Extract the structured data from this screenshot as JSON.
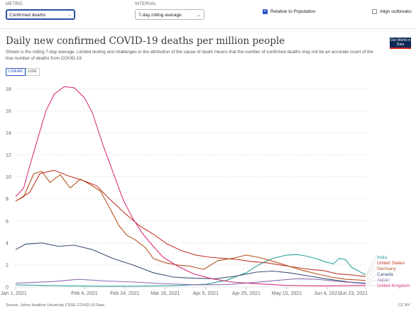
{
  "controls": {
    "metric_label": "METRIC",
    "metric_value": "Confirmed deaths",
    "interval_label": "INTERVAL",
    "interval_value": "7-day rolling average",
    "relative_label": "Relative to Population",
    "relative_checked": true,
    "align_label": "Align outbreaks",
    "align_checked": false
  },
  "header": {
    "title": "Daily new confirmed COVID-19 deaths per million people",
    "subtitle": "Shown is the rolling 7-day average. Limited testing and challenges in the attribution of the cause of death means that the number of confirmed deaths may not be an accurate count of the true number of deaths from COVID-19.",
    "logo": "Our World in Data"
  },
  "scale_toggle": {
    "linear": "LINEAR",
    "log": "LOG",
    "selected": "LINEAR"
  },
  "footer": {
    "source": "Source: Johns Hopkins University CSSE COVID-19 Data",
    "license": "CC BY"
  },
  "chart_data": {
    "type": "line",
    "title": "Daily new confirmed COVID-19 deaths per million people",
    "xlabel": "",
    "ylabel": "",
    "x_ticks": [
      "Jan 1, 2021",
      "Feb 4, 2021",
      "Feb 24, 2021",
      "Mar 16, 2021",
      "Apr 5, 2021",
      "Apr 25, 2021",
      "May 15, 2021",
      "Jun 4, 2021",
      "Jun 23, 2021"
    ],
    "x_range": [
      "2021-01-01",
      "2021-06-23"
    ],
    "ylim": [
      0,
      18.6
    ],
    "y_ticks": [
      0,
      2,
      4,
      6,
      8,
      10,
      12,
      14,
      16,
      18
    ],
    "grid": true,
    "legend": "right",
    "series": [
      {
        "name": "India",
        "color": "#2aa198",
        "points": [
          [
            "2021-01-01",
            0.2
          ],
          [
            "2021-01-20",
            0.12
          ],
          [
            "2021-02-10",
            0.08
          ],
          [
            "2021-03-01",
            0.08
          ],
          [
            "2021-03-20",
            0.12
          ],
          [
            "2021-04-05",
            0.25
          ],
          [
            "2021-04-15",
            0.6
          ],
          [
            "2021-04-25",
            1.3
          ],
          [
            "2021-05-01",
            2.0
          ],
          [
            "2021-05-08",
            2.6
          ],
          [
            "2021-05-15",
            2.9
          ],
          [
            "2021-05-20",
            2.95
          ],
          [
            "2021-05-25",
            2.8
          ],
          [
            "2021-05-30",
            2.55
          ],
          [
            "2021-06-03",
            2.3
          ],
          [
            "2021-06-07",
            2.1
          ],
          [
            "2021-06-10",
            2.6
          ],
          [
            "2021-06-13",
            2.5
          ],
          [
            "2021-06-16",
            1.8
          ],
          [
            "2021-06-20",
            1.4
          ],
          [
            "2021-06-23",
            1.1
          ]
        ]
      },
      {
        "name": "United States",
        "color": "#c0392b",
        "points": [
          [
            "2021-01-01",
            7.8
          ],
          [
            "2021-01-08",
            8.6
          ],
          [
            "2021-01-13",
            10.3
          ],
          [
            "2021-01-20",
            10.6
          ],
          [
            "2021-01-27",
            10.1
          ],
          [
            "2021-02-03",
            9.7
          ],
          [
            "2021-02-10",
            9.2
          ],
          [
            "2021-02-17",
            7.9
          ],
          [
            "2021-02-24",
            6.7
          ],
          [
            "2021-03-03",
            5.6
          ],
          [
            "2021-03-10",
            4.8
          ],
          [
            "2021-03-17",
            3.9
          ],
          [
            "2021-03-24",
            3.3
          ],
          [
            "2021-03-31",
            2.9
          ],
          [
            "2021-04-07",
            2.7
          ],
          [
            "2021-04-14",
            2.6
          ],
          [
            "2021-04-21",
            2.5
          ],
          [
            "2021-04-28",
            2.3
          ],
          [
            "2021-05-05",
            2.2
          ],
          [
            "2021-05-12",
            2.0
          ],
          [
            "2021-05-19",
            1.8
          ],
          [
            "2021-05-26",
            1.6
          ],
          [
            "2021-06-02",
            1.5
          ],
          [
            "2021-06-09",
            1.2
          ],
          [
            "2021-06-16",
            1.1
          ],
          [
            "2021-06-23",
            0.95
          ]
        ]
      },
      {
        "name": "Germany",
        "color": "#b5541c",
        "points": [
          [
            "2021-01-01",
            7.8
          ],
          [
            "2021-01-05",
            8.2
          ],
          [
            "2021-01-10",
            10.3
          ],
          [
            "2021-01-14",
            10.5
          ],
          [
            "2021-01-18",
            9.5
          ],
          [
            "2021-01-23",
            10.2
          ],
          [
            "2021-01-28",
            9.0
          ],
          [
            "2021-02-02",
            9.8
          ],
          [
            "2021-02-07",
            9.3
          ],
          [
            "2021-02-12",
            8.7
          ],
          [
            "2021-02-17",
            7.0
          ],
          [
            "2021-02-21",
            5.6
          ],
          [
            "2021-02-25",
            4.7
          ],
          [
            "2021-03-01",
            4.3
          ],
          [
            "2021-03-06",
            3.6
          ],
          [
            "2021-03-10",
            2.6
          ],
          [
            "2021-03-16",
            2.2
          ],
          [
            "2021-03-22",
            2.0
          ],
          [
            "2021-03-28",
            1.9
          ],
          [
            "2021-04-04",
            1.6
          ],
          [
            "2021-04-11",
            2.4
          ],
          [
            "2021-04-18",
            2.6
          ],
          [
            "2021-04-25",
            2.9
          ],
          [
            "2021-05-01",
            2.7
          ],
          [
            "2021-05-09",
            2.3
          ],
          [
            "2021-05-16",
            1.9
          ],
          [
            "2021-05-23",
            1.5
          ],
          [
            "2021-05-30",
            1.2
          ],
          [
            "2021-06-06",
            0.9
          ],
          [
            "2021-06-13",
            0.7
          ],
          [
            "2021-06-23",
            0.6
          ]
        ]
      },
      {
        "name": "Canada",
        "color": "#3d4f78",
        "points": [
          [
            "2021-01-01",
            3.4
          ],
          [
            "2021-01-06",
            3.9
          ],
          [
            "2021-01-14",
            4.0
          ],
          [
            "2021-01-22",
            3.7
          ],
          [
            "2021-01-30",
            3.8
          ],
          [
            "2021-02-08",
            3.4
          ],
          [
            "2021-02-18",
            2.6
          ],
          [
            "2021-02-28",
            2.0
          ],
          [
            "2021-03-10",
            1.3
          ],
          [
            "2021-03-20",
            0.9
          ],
          [
            "2021-03-30",
            0.8
          ],
          [
            "2021-04-10",
            0.75
          ],
          [
            "2021-04-20",
            1.0
          ],
          [
            "2021-04-30",
            1.35
          ],
          [
            "2021-05-08",
            1.45
          ],
          [
            "2021-05-16",
            1.3
          ],
          [
            "2021-05-26",
            1.0
          ],
          [
            "2021-06-05",
            0.7
          ],
          [
            "2021-06-15",
            0.45
          ],
          [
            "2021-06-23",
            0.35
          ]
        ]
      },
      {
        "name": "Japan",
        "color": "#8e6fb0",
        "points": [
          [
            "2021-01-01",
            0.35
          ],
          [
            "2021-01-20",
            0.5
          ],
          [
            "2021-02-01",
            0.7
          ],
          [
            "2021-02-15",
            0.55
          ],
          [
            "2021-03-01",
            0.45
          ],
          [
            "2021-03-15",
            0.3
          ],
          [
            "2021-04-01",
            0.2
          ],
          [
            "2021-04-15",
            0.22
          ],
          [
            "2021-04-28",
            0.4
          ],
          [
            "2021-05-10",
            0.6
          ],
          [
            "2021-05-20",
            0.75
          ],
          [
            "2021-05-30",
            0.7
          ],
          [
            "2021-06-10",
            0.5
          ],
          [
            "2021-06-23",
            0.3
          ]
        ]
      },
      {
        "name": "United Kingdom",
        "color": "#d8307e",
        "points": [
          [
            "2021-01-01",
            8.2
          ],
          [
            "2021-01-05",
            9.0
          ],
          [
            "2021-01-08",
            11.0
          ],
          [
            "2021-01-12",
            13.5
          ],
          [
            "2021-01-16",
            16.0
          ],
          [
            "2021-01-20",
            17.5
          ],
          [
            "2021-01-25",
            18.2
          ],
          [
            "2021-01-30",
            18.1
          ],
          [
            "2021-02-04",
            17.2
          ],
          [
            "2021-02-08",
            15.8
          ],
          [
            "2021-02-13",
            13.0
          ],
          [
            "2021-02-18",
            10.5
          ],
          [
            "2021-02-23",
            8.0
          ],
          [
            "2021-02-28",
            6.2
          ],
          [
            "2021-03-05",
            4.8
          ],
          [
            "2021-03-10",
            3.7
          ],
          [
            "2021-03-15",
            2.7
          ],
          [
            "2021-03-22",
            1.9
          ],
          [
            "2021-03-30",
            1.2
          ],
          [
            "2021-04-08",
            0.75
          ],
          [
            "2021-04-18",
            0.45
          ],
          [
            "2021-04-30",
            0.3
          ],
          [
            "2021-05-15",
            0.15
          ],
          [
            "2021-06-01",
            0.1
          ],
          [
            "2021-06-23",
            0.15
          ]
        ]
      }
    ]
  }
}
